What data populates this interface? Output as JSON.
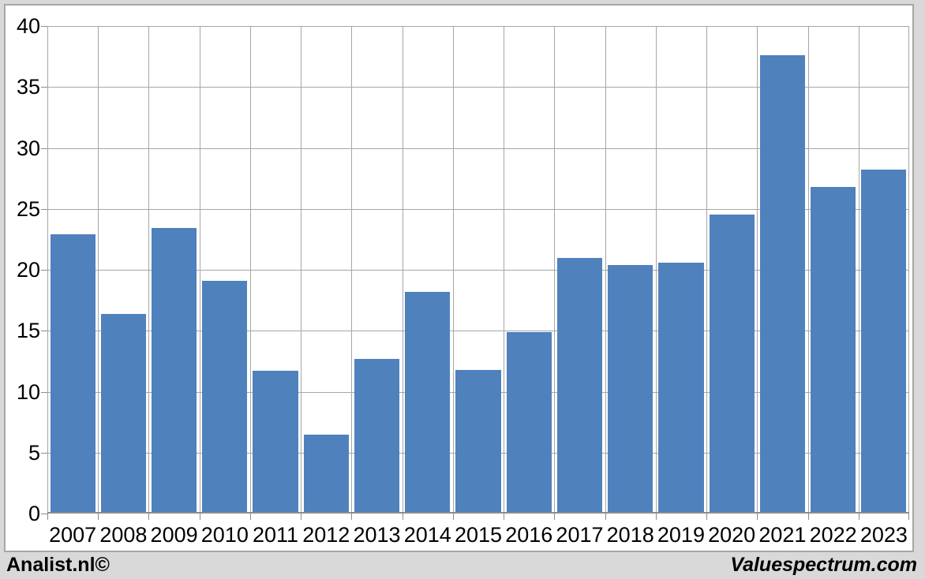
{
  "footer": {
    "left_text": "Analist.nl©",
    "right_text": "Valuespectrum.com"
  },
  "chart_data": {
    "type": "bar",
    "title": "",
    "xlabel": "",
    "ylabel": "",
    "categories": [
      "2007",
      "2008",
      "2009",
      "2010",
      "2011",
      "2012",
      "2013",
      "2014",
      "2015",
      "2016",
      "2017",
      "2018",
      "2019",
      "2020",
      "2021",
      "2022",
      "2023"
    ],
    "values": [
      22.9,
      16.4,
      23.4,
      19.1,
      11.7,
      6.5,
      12.7,
      18.2,
      11.8,
      14.9,
      21.0,
      20.4,
      20.6,
      24.5,
      37.6,
      26.8,
      28.2
    ],
    "ylim": [
      0,
      40
    ],
    "yticks": [
      0,
      5,
      10,
      15,
      20,
      25,
      30,
      35,
      40
    ],
    "grid": true,
    "legend": "none",
    "colors": {
      "bar": "#4f81bd",
      "gridline": "#a6a6a6",
      "axis_line": "#8c8c8c",
      "plot_background": "#ffffff",
      "outer_background": "#d9d9d9",
      "panel_border": "#a6a6a6",
      "label_text": "#000000"
    }
  }
}
